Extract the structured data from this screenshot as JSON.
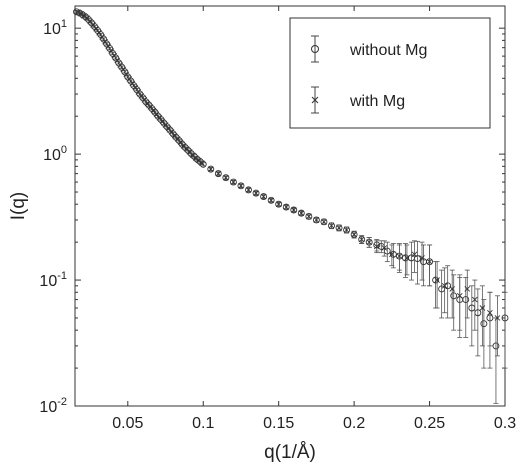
{
  "chart_data": {
    "type": "scatter",
    "xlabel": "q(1/Å)",
    "ylabel": "I(q)",
    "xlim": [
      0.015,
      0.3
    ],
    "ylim": [
      0.01,
      15
    ],
    "yscale": "log",
    "grid": false,
    "legend_position": "top-right",
    "xticks": [
      {
        "value": 0.05,
        "label": "0.05"
      },
      {
        "value": 0.1,
        "label": "0.1"
      },
      {
        "value": 0.15,
        "label": "0.15"
      },
      {
        "value": 0.2,
        "label": "0.2"
      },
      {
        "value": 0.25,
        "label": "0.25"
      },
      {
        "value": 0.3,
        "label": "0.3"
      }
    ],
    "yticks": [
      {
        "value": 0.01,
        "base": "10",
        "exp": "-2"
      },
      {
        "value": 0.1,
        "base": "10",
        "exp": "-1"
      },
      {
        "value": 1,
        "base": "10",
        "exp": "0"
      },
      {
        "value": 10,
        "base": "10",
        "exp": "1"
      }
    ],
    "series": [
      {
        "name": "without Mg",
        "marker": "circle",
        "color": "#333333",
        "x": [
          0.016,
          0.018,
          0.02,
          0.022,
          0.024,
          0.026,
          0.028,
          0.03,
          0.032,
          0.034,
          0.036,
          0.038,
          0.04,
          0.042,
          0.044,
          0.046,
          0.048,
          0.05,
          0.052,
          0.054,
          0.056,
          0.058,
          0.06,
          0.062,
          0.064,
          0.066,
          0.068,
          0.07,
          0.072,
          0.074,
          0.076,
          0.078,
          0.08,
          0.082,
          0.084,
          0.086,
          0.088,
          0.09,
          0.092,
          0.094,
          0.096,
          0.098,
          0.1,
          0.105,
          0.11,
          0.115,
          0.12,
          0.125,
          0.13,
          0.135,
          0.14,
          0.145,
          0.15,
          0.155,
          0.16,
          0.165,
          0.17,
          0.175,
          0.18,
          0.185,
          0.19,
          0.195,
          0.2,
          0.205,
          0.21,
          0.215,
          0.218,
          0.222,
          0.226,
          0.23,
          0.234,
          0.238,
          0.242,
          0.246,
          0.25,
          0.254,
          0.258,
          0.262,
          0.266,
          0.27,
          0.274,
          0.278,
          0.282,
          0.286,
          0.29,
          0.294,
          0.3
        ],
        "y": [
          13.5,
          13.2,
          12.8,
          12.3,
          11.7,
          11.0,
          10.3,
          9.6,
          8.9,
          8.2,
          7.5,
          6.9,
          6.3,
          5.8,
          5.3,
          4.9,
          4.5,
          4.1,
          3.8,
          3.5,
          3.25,
          3.0,
          2.8,
          2.6,
          2.45,
          2.3,
          2.15,
          2.0,
          1.88,
          1.76,
          1.65,
          1.55,
          1.45,
          1.36,
          1.28,
          1.2,
          1.13,
          1.07,
          1.01,
          0.96,
          0.91,
          0.87,
          0.83,
          0.76,
          0.7,
          0.65,
          0.6,
          0.56,
          0.52,
          0.49,
          0.46,
          0.43,
          0.4,
          0.38,
          0.36,
          0.34,
          0.32,
          0.3,
          0.29,
          0.27,
          0.26,
          0.25,
          0.23,
          0.21,
          0.2,
          0.19,
          0.185,
          0.17,
          0.16,
          0.155,
          0.15,
          0.15,
          0.148,
          0.14,
          0.14,
          0.1,
          0.085,
          0.09,
          0.075,
          0.07,
          0.07,
          0.06,
          0.055,
          0.045,
          0.05,
          0.03,
          0.05
        ],
        "err": [
          0.3,
          0.3,
          0.28,
          0.27,
          0.26,
          0.25,
          0.23,
          0.21,
          0.2,
          0.18,
          0.17,
          0.15,
          0.14,
          0.13,
          0.12,
          0.11,
          0.1,
          0.09,
          0.085,
          0.08,
          0.075,
          0.07,
          0.065,
          0.06,
          0.057,
          0.054,
          0.051,
          0.048,
          0.045,
          0.043,
          0.041,
          0.039,
          0.037,
          0.035,
          0.033,
          0.031,
          0.03,
          0.029,
          0.028,
          0.027,
          0.026,
          0.025,
          0.024,
          0.022,
          0.021,
          0.02,
          0.019,
          0.018,
          0.017,
          0.016,
          0.016,
          0.015,
          0.015,
          0.015,
          0.014,
          0.014,
          0.014,
          0.014,
          0.014,
          0.014,
          0.014,
          0.014,
          0.014,
          0.015,
          0.018,
          0.02,
          0.02,
          0.03,
          0.035,
          0.04,
          0.045,
          0.05,
          0.055,
          0.05,
          0.05,
          0.04,
          0.035,
          0.04,
          0.035,
          0.035,
          0.035,
          0.03,
          0.03,
          0.025,
          0.03,
          0.02,
          0.03
        ]
      },
      {
        "name": "with Mg",
        "marker": "x",
        "color": "#333333",
        "x": [
          0.017,
          0.019,
          0.021,
          0.023,
          0.025,
          0.027,
          0.029,
          0.031,
          0.033,
          0.035,
          0.037,
          0.039,
          0.041,
          0.043,
          0.045,
          0.047,
          0.049,
          0.051,
          0.053,
          0.055,
          0.057,
          0.059,
          0.061,
          0.063,
          0.065,
          0.067,
          0.069,
          0.071,
          0.073,
          0.075,
          0.077,
          0.079,
          0.081,
          0.083,
          0.085,
          0.087,
          0.089,
          0.091,
          0.093,
          0.095,
          0.097,
          0.099,
          0.105,
          0.11,
          0.115,
          0.12,
          0.125,
          0.13,
          0.135,
          0.14,
          0.145,
          0.15,
          0.155,
          0.16,
          0.165,
          0.17,
          0.175,
          0.18,
          0.185,
          0.19,
          0.195,
          0.2,
          0.205,
          0.21,
          0.215,
          0.22,
          0.225,
          0.23,
          0.235,
          0.24,
          0.245,
          0.25,
          0.255,
          0.26,
          0.265,
          0.27,
          0.275,
          0.28,
          0.285,
          0.29,
          0.295
        ],
        "y": [
          13.4,
          13.0,
          12.5,
          12.0,
          11.3,
          10.6,
          9.9,
          9.2,
          8.5,
          7.8,
          7.2,
          6.6,
          6.05,
          5.55,
          5.1,
          4.7,
          4.3,
          3.95,
          3.65,
          3.38,
          3.12,
          2.9,
          2.7,
          2.52,
          2.37,
          2.22,
          2.07,
          1.94,
          1.82,
          1.7,
          1.6,
          1.5,
          1.4,
          1.32,
          1.24,
          1.16,
          1.1,
          1.04,
          0.98,
          0.93,
          0.89,
          0.85,
          0.76,
          0.7,
          0.65,
          0.6,
          0.56,
          0.52,
          0.49,
          0.46,
          0.43,
          0.4,
          0.38,
          0.36,
          0.34,
          0.32,
          0.3,
          0.29,
          0.27,
          0.26,
          0.25,
          0.23,
          0.21,
          0.2,
          0.185,
          0.18,
          0.16,
          0.155,
          0.15,
          0.16,
          0.15,
          0.14,
          0.1,
          0.09,
          0.085,
          0.075,
          0.085,
          0.07,
          0.06,
          0.055,
          0.05
        ],
        "err": [
          0.3,
          0.29,
          0.28,
          0.27,
          0.25,
          0.24,
          0.22,
          0.2,
          0.19,
          0.17,
          0.16,
          0.14,
          0.13,
          0.12,
          0.11,
          0.1,
          0.095,
          0.088,
          0.082,
          0.077,
          0.072,
          0.067,
          0.062,
          0.058,
          0.055,
          0.052,
          0.049,
          0.046,
          0.044,
          0.042,
          0.04,
          0.038,
          0.036,
          0.034,
          0.032,
          0.031,
          0.03,
          0.029,
          0.028,
          0.027,
          0.026,
          0.025,
          0.022,
          0.021,
          0.02,
          0.019,
          0.018,
          0.017,
          0.016,
          0.016,
          0.015,
          0.015,
          0.015,
          0.014,
          0.014,
          0.014,
          0.014,
          0.014,
          0.014,
          0.014,
          0.014,
          0.014,
          0.015,
          0.018,
          0.02,
          0.025,
          0.03,
          0.035,
          0.04,
          0.045,
          0.05,
          0.05,
          0.04,
          0.035,
          0.035,
          0.035,
          0.035,
          0.03,
          0.03,
          0.025,
          0.025
        ]
      }
    ]
  }
}
